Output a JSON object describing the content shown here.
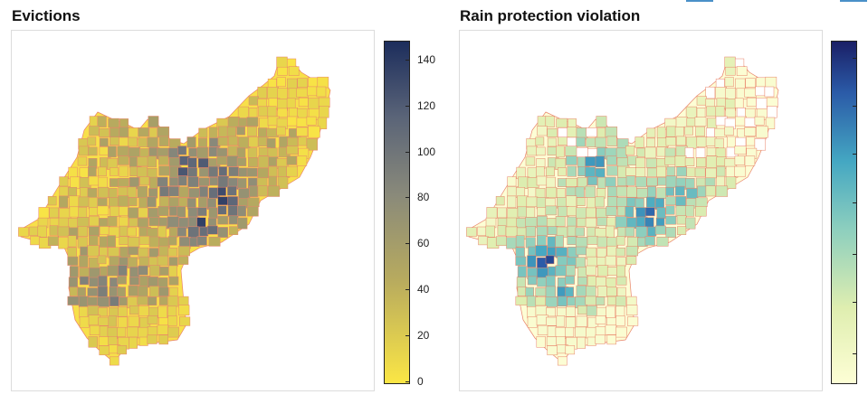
{
  "panels": {
    "left": {
      "title": "Evictions",
      "colorbar": {
        "ticks": [
          "0",
          "20",
          "40",
          "60",
          "80",
          "100",
          "120",
          "140"
        ],
        "range": [
          0,
          147
        ],
        "colors": [
          "#fbe645",
          "#1c2d5c"
        ]
      }
    },
    "right": {
      "title": "Rain protection violation",
      "colorbar": {
        "ticks": [],
        "colors": [
          "#fdfed5",
          "#1a1f66"
        ]
      }
    }
  },
  "map": {
    "boundary_color": "#e8836a",
    "no_data_color": "#ffffff"
  }
}
